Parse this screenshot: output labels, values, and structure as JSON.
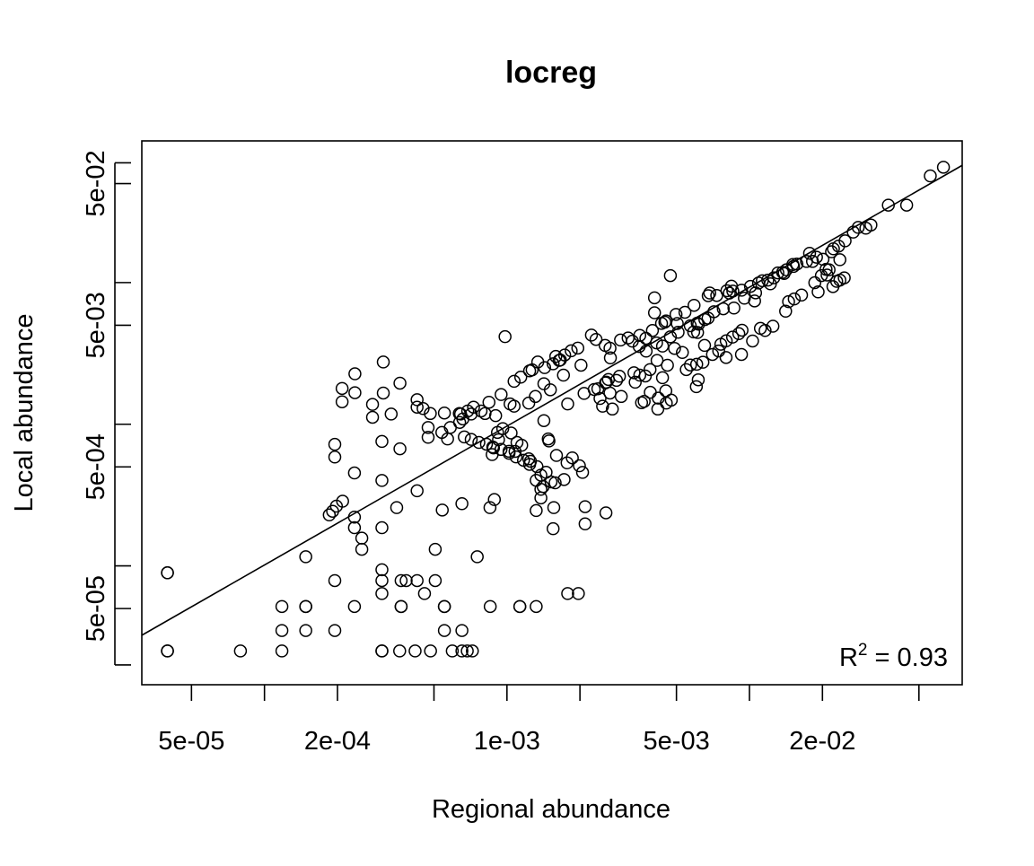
{
  "chart_data": {
    "type": "scatter",
    "title": "locreg",
    "xlabel": "Regional abundance",
    "ylabel": "Local abundance",
    "x_scale": "log",
    "y_scale": "log",
    "xlim": [
      3.12e-05,
      0.0754
    ],
    "ylim": [
      1.45e-05,
      0.1
    ],
    "x_ticks": [
      5e-05,
      0.0001,
      0.0002,
      0.0005,
      0.001,
      0.002,
      0.005,
      0.01,
      0.02,
      0.05
    ],
    "x_tick_labels": [
      "5e-05",
      "",
      "2e-04",
      "",
      "1e-03",
      "",
      "5e-03",
      "",
      "2e-02",
      ""
    ],
    "y_ticks": [
      2e-05,
      5e-05,
      0.0001,
      0.0005,
      0.001,
      0.005,
      0.01,
      0.05,
      0.07
    ],
    "y_tick_labels": [
      "",
      "5e-05",
      "",
      "5e-04",
      "",
      "5e-03",
      "",
      "5e-02",
      ""
    ],
    "grid": false,
    "annotation": {
      "text": "R",
      "sup": "2",
      "rest": " = 0.93"
    },
    "fit_line": {
      "x": [
        3.12e-05,
        0.0754
      ],
      "y": [
        3.24e-05,
        0.0672
      ]
    },
    "points": [
      [
        3.98e-05,
        2.51e-05
      ],
      [
        3.98e-05,
        2.51e-05
      ],
      [
        3.98e-05,
        8.94e-05
      ],
      [
        3.98e-05,
        8.94e-05
      ],
      [
        7.96e-05,
        2.51e-05
      ],
      [
        0.000118,
        2.51e-05
      ],
      [
        0.000305,
        2.51e-05
      ],
      [
        0.000305,
        2.51e-05
      ],
      [
        0.000361,
        2.51e-05
      ],
      [
        0.000418,
        2.51e-05
      ],
      [
        0.000484,
        2.51e-05
      ],
      [
        0.000595,
        2.51e-05
      ],
      [
        0.000652,
        2.51e-05
      ],
      [
        0.000686,
        2.51e-05
      ],
      [
        0.00072,
        2.51e-05
      ],
      [
        0.000118,
        3.5e-05
      ],
      [
        0.000148,
        3.5e-05
      ],
      [
        0.000195,
        3.5e-05
      ],
      [
        0.000552,
        3.5e-05
      ],
      [
        0.000652,
        3.5e-05
      ],
      [
        0.000118,
        5.17e-05
      ],
      [
        0.000148,
        5.17e-05
      ],
      [
        0.000148,
        5.17e-05
      ],
      [
        0.000235,
        5.17e-05
      ],
      [
        0.000366,
        5.17e-05
      ],
      [
        0.000366,
        5.17e-05
      ],
      [
        0.000552,
        5.17e-05
      ],
      [
        0.000552,
        5.17e-05
      ],
      [
        0.000853,
        5.17e-05
      ],
      [
        0.00113,
        5.17e-05
      ],
      [
        0.00132,
        5.17e-05
      ],
      [
        0.000305,
        6.38e-05
      ],
      [
        0.000457,
        6.38e-05
      ],
      [
        0.00178,
        6.38e-05
      ],
      [
        0.00197,
        6.38e-05
      ],
      [
        0.000195,
        7.88e-05
      ],
      [
        0.000305,
        7.88e-05
      ],
      [
        0.000366,
        7.88e-05
      ],
      [
        0.000384,
        7.88e-05
      ],
      [
        0.000426,
        7.88e-05
      ],
      [
        0.000506,
        7.88e-05
      ],
      [
        0.000148,
        0.000116
      ],
      [
        0.000305,
        9.4e-05
      ],
      [
        0.000252,
        0.000131
      ],
      [
        0.000506,
        0.000131
      ],
      [
        0.000754,
        0.000116
      ],
      [
        0.000305,
        0.000186
      ],
      [
        0.000235,
        0.000186
      ],
      [
        0.000235,
        0.000221
      ],
      [
        0.000252,
        0.000157
      ],
      [
        0.000351,
        0.000258
      ],
      [
        0.000426,
        0.000339
      ],
      [
        0.000541,
        0.000248
      ],
      [
        0.000652,
        0.000275
      ],
      [
        0.000851,
        0.000258
      ],
      [
        0.000887,
        0.000294
      ],
      [
        0.00132,
        0.000246
      ],
      [
        0.00156,
        0.000258
      ],
      [
        0.00155,
        0.000183
      ],
      [
        0.0021,
        0.000262
      ],
      [
        0.0021,
        0.000198
      ],
      [
        0.00256,
        0.000237
      ],
      [
        0.00138,
        0.000302
      ],
      [
        0.000305,
        0.000401
      ],
      [
        0.000305,
        0.000756
      ],
      [
        0.000235,
        0.000453
      ],
      [
        0.000195,
        0.000587
      ],
      [
        0.000195,
        0.000721
      ],
      [
        0.000362,
        0.000671
      ],
      [
        0.000473,
        0.000948
      ],
      [
        0.000569,
        0.000787
      ],
      [
        0.000644,
        0.00118
      ],
      [
        0.000658,
        0.00109
      ],
      [
        0.000728,
        0.00132
      ],
      [
        0.000782,
        0.00124
      ],
      [
        0.000898,
        0.00115
      ],
      [
        0.000869,
        0.000611
      ],
      [
        0.00088,
        0.00068
      ],
      [
        0.000923,
        0.000778
      ],
      [
        0.000914,
        0.000876
      ],
      [
        0.000961,
        0.000932
      ],
      [
        0.00104,
        0.000868
      ],
      [
        0.0011,
        0.000744
      ],
      [
        0.00115,
        0.000711
      ],
      [
        0.00108,
        0.000643
      ],
      [
        0.00123,
        0.00057
      ],
      [
        0.00125,
        0.000548
      ],
      [
        0.00102,
        0.000644
      ],
      [
        0.00148,
        0.000788
      ],
      [
        0.00149,
        0.000762
      ],
      [
        0.00132,
        0.000402
      ],
      [
        0.00138,
        0.000347
      ],
      [
        0.00141,
        0.000363
      ],
      [
        0.00138,
        0.000437
      ],
      [
        0.00113,
        5.17e-05
      ],
      [
        0.00178,
        0.00139
      ],
      [
        0.00142,
        0.00106
      ],
      [
        0.000362,
        0.00195
      ],
      [
        0.000309,
        0.00166
      ],
      [
        0.000309,
        0.00275
      ],
      [
        0.000426,
        0.00149
      ],
      [
        0.000426,
        0.00132
      ],
      [
        0.000236,
        0.00227
      ],
      [
        0.000236,
        0.00167
      ],
      [
        0.000209,
        0.00179
      ],
      [
        0.000209,
        0.00144
      ],
      [
        0.000279,
        0.00112
      ],
      [
        0.000279,
        0.00138
      ],
      [
        0.000333,
        0.00118
      ],
      [
        0.000451,
        0.00129
      ],
      [
        0.000483,
        0.00119
      ],
      [
        0.000552,
        0.0012
      ],
      [
        0.000636,
        0.00119
      ],
      [
        0.000689,
        0.00124
      ],
      [
        0.000812,
        0.00119
      ],
      [
        0.00103,
        0.00139
      ],
      [
        0.00107,
        0.00134
      ],
      [
        0.00123,
        0.00141
      ],
      [
        0.00131,
        0.00157
      ],
      [
        0.00142,
        0.00193
      ],
      [
        0.00151,
        0.00175
      ],
      [
        0.00171,
        0.00222
      ],
      [
        0.00208,
        0.00165
      ],
      [
        0.00255,
        0.00196
      ],
      [
        0.00262,
        0.00207
      ],
      [
        0.00267,
        0.00294
      ],
      [
        0.00283,
        0.00204
      ],
      [
        0.00334,
        0.00231
      ],
      [
        0.00353,
        0.00222
      ],
      [
        0.00372,
        0.00219
      ],
      [
        0.00389,
        0.00243
      ],
      [
        0.00416,
        0.00282
      ],
      [
        0.00459,
        0.00261
      ],
      [
        0.00491,
        0.00343
      ],
      [
        0.00529,
        0.00321
      ],
      [
        0.00606,
        0.00265
      ],
      [
        0.00704,
        0.00311
      ],
      [
        0.00762,
        0.00367
      ],
      [
        0.00802,
        0.00388
      ],
      [
        0.00852,
        0.00412
      ],
      [
        0.00904,
        0.00436
      ],
      [
        0.00932,
        0.00461
      ],
      [
        0.000982,
        0.00415
      ],
      [
        0.00134,
        0.00275
      ],
      [
        0.00159,
        0.00301
      ],
      [
        0.00164,
        0.00282
      ],
      [
        0.00184,
        0.0033
      ],
      [
        0.00196,
        0.00345
      ],
      [
        0.00223,
        0.00426
      ],
      [
        0.00233,
        0.00397
      ],
      [
        0.00254,
        0.0036
      ],
      [
        0.00266,
        0.00344
      ],
      [
        0.00294,
        0.00393
      ],
      [
        0.00329,
        0.00386
      ],
      [
        0.00351,
        0.00354
      ],
      [
        0.00375,
        0.00328
      ],
      [
        0.00414,
        0.00375
      ],
      [
        0.00438,
        0.00356
      ],
      [
        0.00472,
        0.00414
      ],
      [
        0.00508,
        0.00446
      ],
      [
        0.0057,
        0.00496
      ],
      [
        0.00609,
        0.00517
      ],
      [
        0.00655,
        0.00548
      ],
      [
        0.00675,
        0.00561
      ],
      [
        0.00714,
        0.00623
      ],
      [
        0.0078,
        0.00653
      ],
      [
        0.00863,
        0.00661
      ],
      [
        0.00953,
        0.00776
      ],
      [
        0.00854,
        0.00871
      ],
      [
        0.00826,
        0.00842
      ],
      [
        0.0105,
        0.00742
      ],
      [
        0.0106,
        0.00846
      ],
      [
        0.0109,
        0.00992
      ],
      [
        0.0122,
        0.0098
      ],
      [
        0.0131,
        0.0117
      ],
      [
        0.0139,
        0.0116
      ],
      [
        0.0151,
        0.0134
      ],
      [
        0.0157,
        0.0135
      ],
      [
        0.0172,
        0.0141
      ],
      [
        0.0177,
        0.0161
      ],
      [
        0.0189,
        0.0151
      ],
      [
        0.0201,
        0.0146
      ],
      [
        0.0218,
        0.0165
      ],
      [
        0.0233,
        0.0181
      ],
      [
        0.0248,
        0.0197
      ],
      [
        0.0268,
        0.0227
      ],
      [
        0.0281,
        0.0245
      ],
      [
        0.0302,
        0.0242
      ],
      [
        0.0317,
        0.0255
      ],
      [
        0.0374,
        0.0352
      ],
      [
        0.0445,
        0.0352
      ],
      [
        0.0557,
        0.0566
      ],
      [
        0.0631,
        0.0652
      ],
      [
        0.00653,
        0.0036
      ],
      [
        0.00747,
        0.00329
      ],
      [
        0.00801,
        0.00296
      ],
      [
        0.00927,
        0.00311
      ],
      [
        0.0103,
        0.00387
      ],
      [
        0.0111,
        0.00475
      ],
      [
        0.0116,
        0.00459
      ],
      [
        0.0125,
        0.00492
      ],
      [
        0.0141,
        0.00628
      ],
      [
        0.0145,
        0.00733
      ],
      [
        0.0153,
        0.00766
      ],
      [
        0.0164,
        0.00816
      ],
      [
        0.0186,
        0.00998
      ],
      [
        0.0192,
        0.00859
      ],
      [
        0.0198,
        0.0112
      ],
      [
        0.0207,
        0.0124
      ],
      [
        0.0209,
        0.0113
      ],
      [
        0.0221,
        0.00937
      ],
      [
        0.0229,
        0.0102
      ],
      [
        0.0236,
        0.0104
      ],
      [
        0.0246,
        0.0108
      ],
      [
        0.0213,
        0.0123
      ],
      [
        0.0222,
        0.0173
      ],
      [
        0.0182,
        0.0141
      ],
      [
        0.0236,
        0.0145
      ],
      [
        0.00472,
        0.0112
      ],
      [
        0.00406,
        0.00781
      ],
      [
        0.00406,
        0.00612
      ],
      [
        0.00434,
        0.00515
      ],
      [
        0.00453,
        0.00536
      ],
      [
        0.00498,
        0.00596
      ],
      [
        0.00504,
        0.00514
      ],
      [
        0.00617,
        0.00508
      ],
      [
        0.00611,
        0.00444
      ],
      [
        0.00589,
        0.00448
      ],
      [
        0.00316,
        0.00406
      ],
      [
        0.00353,
        0.00424
      ],
      [
        0.00374,
        0.00404
      ],
      [
        0.00398,
        0.00459
      ],
      [
        0.00448,
        0.00525
      ],
      [
        0.00542,
        0.00617
      ],
      [
        0.00591,
        0.00691
      ],
      [
        0.00676,
        0.00808
      ],
      [
        0.00686,
        0.00844
      ],
      [
        0.00733,
        0.00811
      ],
      [
        0.00807,
        0.00876
      ],
      [
        0.00843,
        0.00944
      ],
      [
        0.00928,
        0.00883
      ],
      [
        0.0101,
        0.0094
      ],
      [
        0.0113,
        0.0103
      ],
      [
        0.0119,
        0.0104
      ],
      [
        0.0126,
        0.0108
      ],
      [
        0.0137,
        0.0118
      ],
      [
        0.0142,
        0.0123
      ],
      [
        0.0152,
        0.013
      ],
      [
        0.0039,
        0.00168
      ],
      [
        0.00359,
        0.00142
      ],
      [
        0.00421,
        0.00153
      ],
      [
        0.00452,
        0.00172
      ],
      [
        0.00438,
        0.00213
      ],
      [
        0.00338,
        0.00198
      ],
      [
        0.00291,
        0.00218
      ],
      [
        0.00257,
        0.00198
      ],
      [
        0.00237,
        0.00178
      ],
      [
        0.00229,
        0.00176
      ],
      [
        0.00202,
        0.00261
      ],
      [
        0.00166,
        0.00284
      ],
      [
        0.00155,
        0.00267
      ],
      [
        0.00143,
        0.00251
      ],
      [
        0.00127,
        0.00242
      ],
      [
        0.00124,
        0.00238
      ],
      [
        0.00114,
        0.00215
      ],
      [
        0.00107,
        0.00201
      ],
      [
        0.000946,
        0.00162
      ],
      [
        0.000843,
        0.00143
      ],
      [
        0.000712,
        0.00118
      ],
      [
        0.000638,
        0.00103
      ],
      [
        0.000584,
        0.000949
      ],
      [
        0.000539,
        0.000876
      ],
      [
        0.000473,
        0.000809
      ],
      [
        0.0016,
        0.000602
      ],
      [
        0.00177,
        0.000534
      ],
      [
        0.00186,
        0.000579
      ],
      [
        0.00199,
        0.000509
      ],
      [
        0.00205,
        0.000457
      ],
      [
        0.00172,
        0.000407
      ],
      [
        0.00158,
        0.000386
      ],
      [
        0.00152,
        0.000392
      ],
      [
        0.00145,
        0.000458
      ],
      [
        0.00133,
        0.000502
      ],
      [
        0.00124,
        0.000521
      ],
      [
        0.00117,
        0.000557
      ],
      [
        0.00109,
        0.000588
      ],
      [
        0.00102,
        0.000624
      ],
      [
        0.000945,
        0.000664
      ],
      [
        0.000874,
        0.000691
      ],
      [
        0.000823,
        0.000723
      ],
      [
        0.000766,
        0.000744
      ],
      [
        0.000712,
        0.000781
      ],
      [
        0.000667,
        0.000813
      ],
      [
        0.00021,
        0.000286
      ],
      [
        0.000198,
        0.000264
      ],
      [
        0.000191,
        0.000243
      ],
      [
        0.000185,
        0.000229
      ],
      [
        0.00173,
        0.00308
      ],
      [
        0.00242,
        0.00152
      ],
      [
        0.00266,
        0.00166
      ],
      [
        0.00248,
        0.00134
      ],
      [
        0.00272,
        0.00128
      ],
      [
        0.00296,
        0.00157
      ],
      [
        0.00368,
        0.00145
      ],
      [
        0.00419,
        0.00128
      ],
      [
        0.00454,
        0.00141
      ],
      [
        0.00476,
        0.00148
      ],
      [
        0.00604,
        0.00184
      ],
      [
        0.00615,
        0.00206
      ],
      [
        0.00549,
        0.00243
      ],
      [
        0.00571,
        0.00262
      ],
      [
        0.00643,
        0.00274
      ]
    ]
  }
}
